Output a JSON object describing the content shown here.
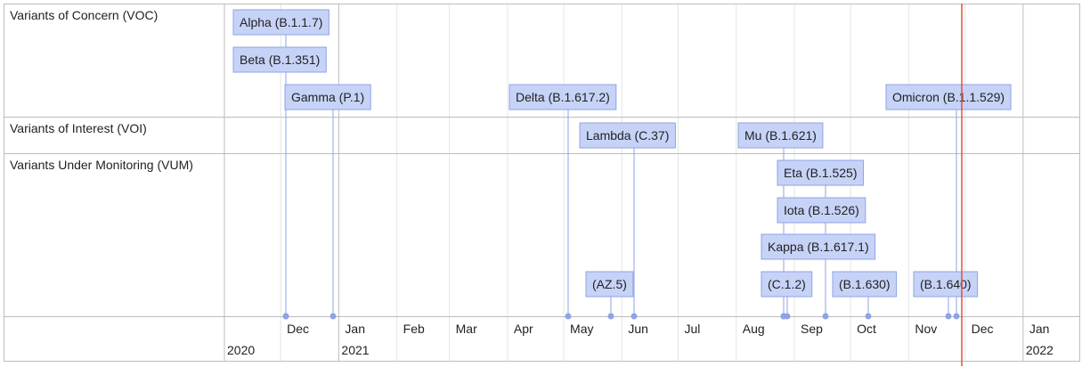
{
  "chart_data": {
    "type": "timeline",
    "rows": [
      {
        "name": "Variants of Concern (VOC)"
      },
      {
        "name": "Variants of Interest (VOI)"
      },
      {
        "name": "Variants Under Monitoring (VUM)"
      }
    ],
    "events": [
      {
        "label": "Alpha (B.1.1.7)",
        "row": 0,
        "date": "2020-12-18"
      },
      {
        "label": "Beta (B.1.351)",
        "row": 0,
        "date": "2020-12-18"
      },
      {
        "label": "Gamma (P.1)",
        "row": 0,
        "date": "2021-01-11"
      },
      {
        "label": "Delta (B.1.617.2)",
        "row": 0,
        "date": "2021-05-11"
      },
      {
        "label": "Omicron (B.1.1.529)",
        "row": 0,
        "date": "2021-11-26"
      },
      {
        "label": "Lambda (C.37)",
        "row": 1,
        "date": "2021-06-14"
      },
      {
        "label": "Mu (B.1.621)",
        "row": 1,
        "date": "2021-08-30"
      },
      {
        "label": "Eta (B.1.525)",
        "row": 2,
        "date": "2021-09-20"
      },
      {
        "label": "Iota (B.1.526)",
        "row": 2,
        "date": "2021-08-30"
      },
      {
        "label": "Kappa (B.1.617.1)",
        "row": 2,
        "date": "2021-08-30"
      },
      {
        "label": "(AZ.5)",
        "row": 2,
        "date": "2021-06-02"
      },
      {
        "label": "(C.1.2)",
        "row": 2,
        "date": "2021-09-01"
      },
      {
        "label": "(B.1.630)",
        "row": 2,
        "date": "2021-10-12"
      },
      {
        "label": "(B.1.640)",
        "row": 2,
        "date": "2021-11-22"
      }
    ],
    "x_ticks": [
      "Dec",
      "Jan",
      "Feb",
      "Mar",
      "Apr",
      "May",
      "Jun",
      "Jul",
      "Aug",
      "Sep",
      "Oct",
      "Nov",
      "Dec",
      "Jan"
    ],
    "x_years": [
      "2020",
      "2021",
      "2022"
    ],
    "xlim": [
      "2020-11-01",
      "2022-01-31"
    ],
    "current_date": "2021-11-29",
    "colors": {
      "label_fill": "#c6d3f7",
      "label_border": "#8ea3e6",
      "stem": "#8ea3e6",
      "current_line": "#e0503a",
      "grid": "#e6e6e6",
      "border": "#bdbdbd"
    }
  }
}
